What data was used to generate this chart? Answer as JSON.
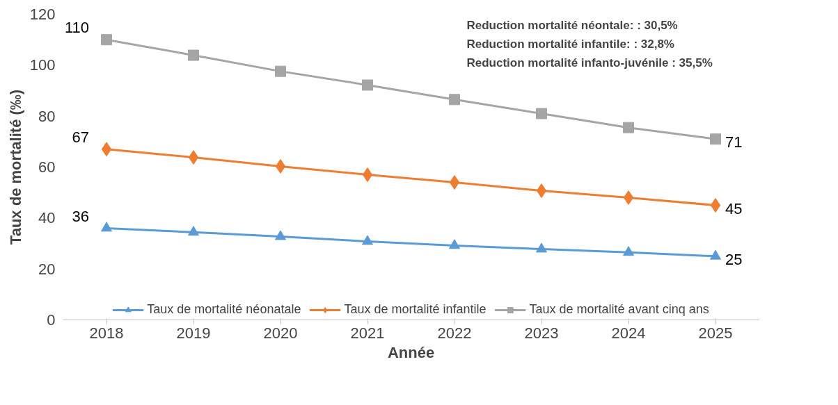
{
  "chart_data": {
    "type": "line",
    "xlabel": "Année",
    "ylabel": "Taux de mortalité (‰)",
    "categories": [
      "2018",
      "2019",
      "2020",
      "2021",
      "2022",
      "2023",
      "2024",
      "2025"
    ],
    "ylim": [
      0,
      120
    ],
    "yticks": [
      0,
      20,
      40,
      60,
      80,
      100,
      120
    ],
    "grid": false,
    "legend": "bottom",
    "annotations": [
      "Reduction mortalité néontale:          : 30,5%",
      "Reduction  mortalité infantile:            : 32,8%",
      "Reduction mortalité infanto-juvénile : 35,5%"
    ],
    "series": [
      {
        "name": "Taux de mortalité néonatale",
        "color": "#5b9bd5",
        "marker": "triangle",
        "values": [
          36,
          34.4,
          32.7,
          30.8,
          29.2,
          27.8,
          26.5,
          25
        ],
        "value_labels": [
          "36",
          null,
          null,
          null,
          null,
          null,
          null,
          "25"
        ]
      },
      {
        "name": "Taux de mortalité infantile",
        "color": "#ed7d31",
        "marker": "diamond",
        "values": [
          67,
          63.8,
          60.3,
          57,
          54,
          50.7,
          48,
          45
        ],
        "value_labels": [
          "67",
          null,
          null,
          null,
          null,
          null,
          null,
          "45"
        ]
      },
      {
        "name": "Taux de mortalité avant cinq ans",
        "color": "#a5a5a5",
        "marker": "square",
        "values": [
          110,
          103.9,
          97.6,
          92.2,
          86.5,
          81,
          75.5,
          71
        ],
        "value_labels": [
          "110",
          null,
          null,
          null,
          null,
          null,
          null,
          "71"
        ]
      }
    ]
  }
}
